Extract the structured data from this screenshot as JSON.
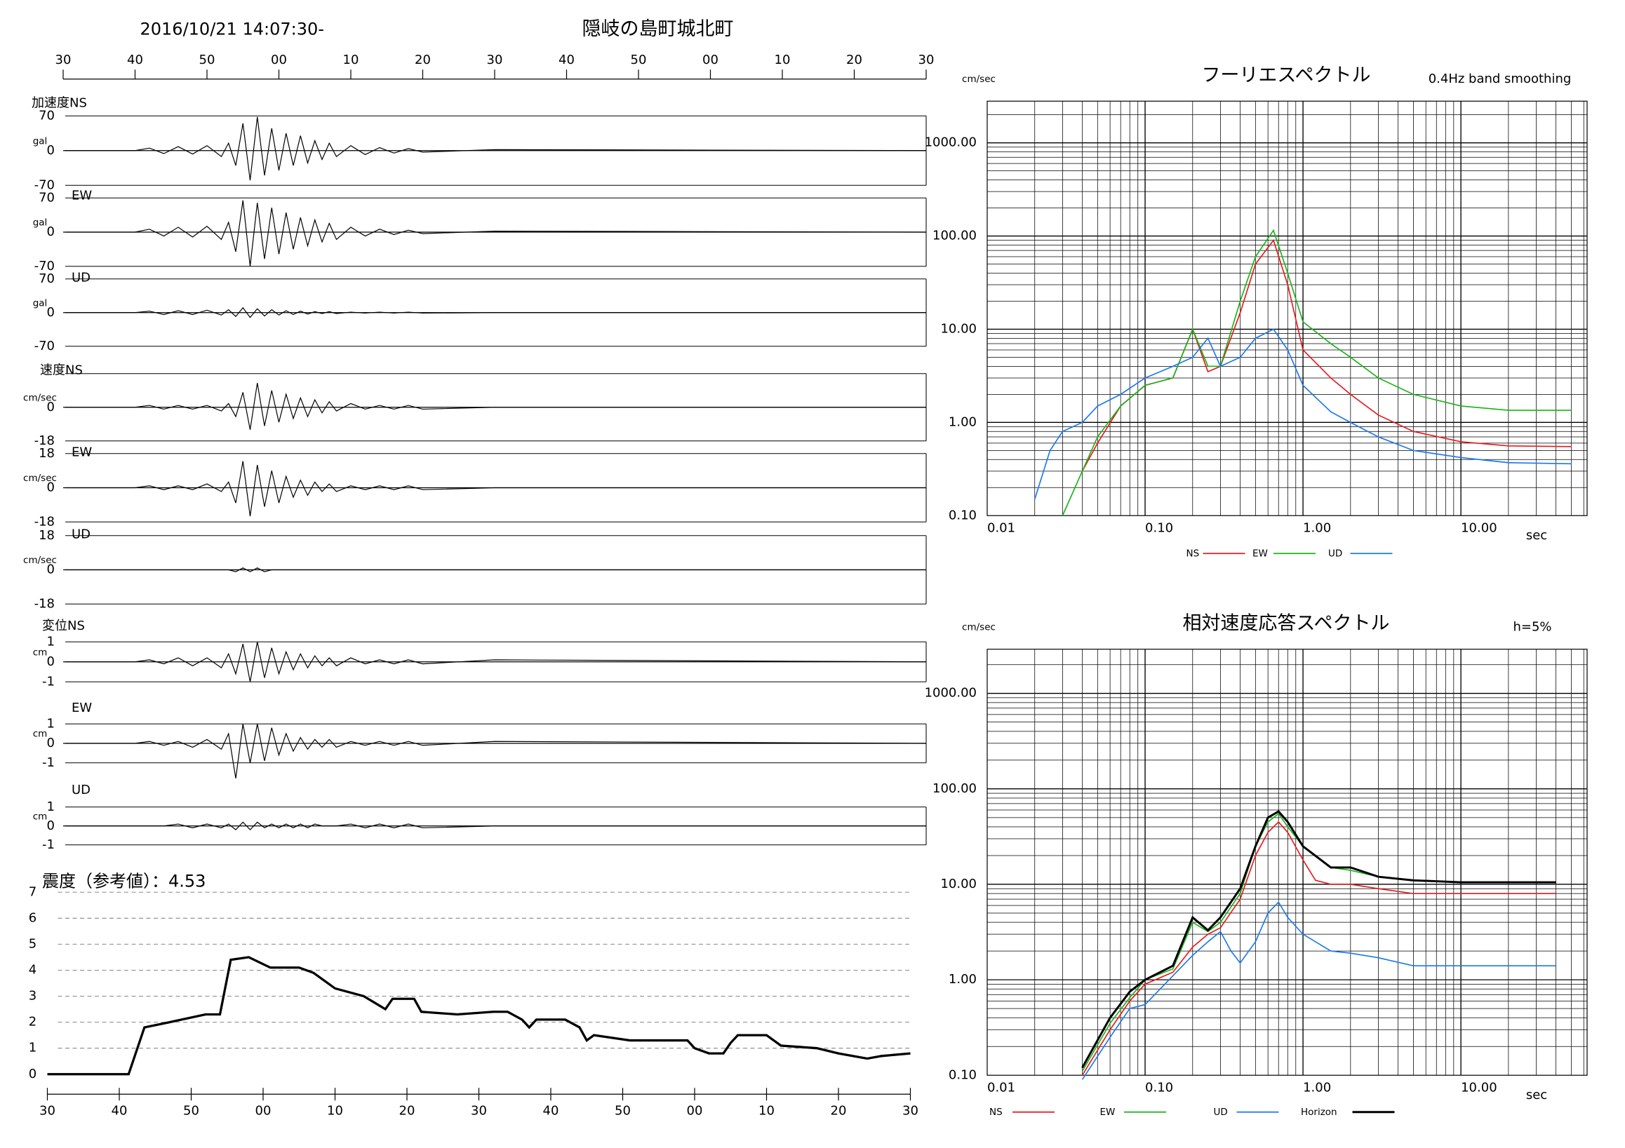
{
  "header": {
    "datetime": "2016/10/21 14:07:30-",
    "title": "隠岐の島町城北町"
  },
  "chart_data": [
    {
      "type": "waveform",
      "xlim": [
        0,
        120
      ],
      "xticks": [
        {
          "value": 0,
          "label": "30"
        },
        {
          "value": 10,
          "label": "40"
        },
        {
          "value": 20,
          "label": "50"
        },
        {
          "value": 30,
          "label": "00"
        },
        {
          "value": 40,
          "label": "10"
        },
        {
          "value": 50,
          "label": "20"
        },
        {
          "value": 60,
          "label": "30"
        },
        {
          "value": 70,
          "label": "40"
        },
        {
          "value": 80,
          "label": "50"
        },
        {
          "value": 90,
          "label": "00"
        },
        {
          "value": 100,
          "label": "10"
        },
        {
          "value": 110,
          "label": "20"
        },
        {
          "value": 120,
          "label": "30"
        }
      ],
      "x": [
        0,
        10,
        12,
        14,
        16,
        18,
        20,
        22,
        23,
        24,
        25,
        26,
        27,
        28,
        29,
        30,
        31,
        32,
        33,
        34,
        35,
        36,
        37,
        38,
        40,
        42,
        44,
        46,
        48,
        50,
        60,
        120
      ],
      "panels": [
        {
          "label": "加速度NS",
          "unit": "gal",
          "ylim": [
            -70,
            70
          ],
          "yticks": [
            -70,
            0,
            70
          ],
          "color": "#000000",
          "values": [
            0,
            0,
            5,
            -6,
            8,
            -7,
            10,
            -12,
            15,
            -30,
            55,
            -60,
            68,
            -50,
            45,
            -40,
            35,
            -30,
            30,
            -25,
            20,
            -18,
            15,
            -12,
            10,
            -8,
            6,
            -5,
            4,
            -3,
            2,
            0
          ]
        },
        {
          "label": "EW",
          "unit": "gal",
          "ylim": [
            -70,
            70
          ],
          "yticks": [
            -70,
            0,
            70
          ],
          "color": "#000000",
          "values": [
            0,
            0,
            6,
            -8,
            10,
            -10,
            12,
            -15,
            20,
            -40,
            65,
            -70,
            60,
            -55,
            50,
            -45,
            40,
            -35,
            30,
            -28,
            25,
            -20,
            18,
            -15,
            10,
            -8,
            6,
            -5,
            4,
            -3,
            2,
            0
          ]
        },
        {
          "label": "UD",
          "unit": "gal",
          "ylim": [
            -70,
            70
          ],
          "yticks": [
            -70,
            0,
            70
          ],
          "color": "#000000",
          "values": [
            0,
            0,
            3,
            -4,
            4,
            -4,
            5,
            -5,
            6,
            -8,
            10,
            -10,
            8,
            -7,
            6,
            -5,
            4,
            -4,
            3,
            -3,
            2,
            -2,
            2,
            -2,
            1,
            -1,
            1,
            -1,
            1,
            -1,
            0,
            0
          ]
        },
        {
          "label": "速度NS",
          "unit": "cm/sec",
          "ylim": [
            -18,
            18
          ],
          "yticks": [
            -18,
            0
          ],
          "color": "#000000",
          "values": [
            0,
            0,
            1,
            -1,
            1,
            -1,
            1,
            -2,
            2,
            -5,
            8,
            -12,
            13,
            -10,
            9,
            -8,
            7,
            -6,
            5,
            -5,
            4,
            -3,
            3,
            -2,
            2,
            -1,
            1,
            -1,
            1,
            -1,
            0,
            0
          ]
        },
        {
          "label": "EW",
          "unit": "cm/sec",
          "ylim": [
            -18,
            18
          ],
          "yticks": [
            -18,
            0,
            18
          ],
          "color": "#000000",
          "values": [
            0,
            0,
            1,
            -1,
            1,
            -1,
            2,
            -2,
            3,
            -8,
            14,
            -15,
            12,
            -10,
            9,
            -8,
            6,
            -5,
            4,
            -4,
            3,
            -2,
            2,
            -2,
            1,
            -1,
            1,
            -1,
            1,
            -1,
            0,
            0
          ]
        },
        {
          "label": "UD",
          "unit": "cm/sec",
          "ylim": [
            -18,
            18
          ],
          "yticks": [
            -18,
            0,
            18
          ],
          "color": "#000000",
          "values": [
            0,
            0,
            0,
            0,
            0,
            0,
            0,
            0,
            0,
            -1,
            1,
            -1,
            1,
            -1,
            0,
            0,
            0,
            0,
            0,
            0,
            0,
            0,
            0,
            0,
            0,
            0,
            0,
            0,
            0,
            0,
            0,
            0
          ]
        },
        {
          "label": "変位NS",
          "unit": "cm",
          "ylim": [
            -1,
            1
          ],
          "yticks": [
            -1,
            0,
            1
          ],
          "color": "#000000",
          "values": [
            0,
            0,
            0.1,
            -0.1,
            0.2,
            -0.2,
            0.2,
            -0.3,
            0.4,
            -0.6,
            0.9,
            -1,
            1,
            -0.8,
            0.7,
            -0.6,
            0.5,
            -0.4,
            0.4,
            -0.3,
            0.3,
            -0.2,
            0.2,
            -0.2,
            0.2,
            -0.1,
            0.1,
            -0.1,
            0.1,
            -0.1,
            0.1,
            0
          ]
        },
        {
          "label": "EW",
          "unit": "cm",
          "ylim": [
            -1,
            1
          ],
          "yticks": [
            -1,
            0,
            1
          ],
          "color": "#000000",
          "values": [
            0,
            0,
            0.1,
            -0.1,
            0.1,
            -0.2,
            0.2,
            -0.3,
            0.5,
            -1.8,
            1,
            -1,
            1,
            -0.9,
            0.8,
            -0.6,
            0.5,
            -0.4,
            0.3,
            -0.3,
            0.2,
            -0.2,
            0.2,
            -0.2,
            0.1,
            -0.1,
            0.1,
            -0.1,
            0.1,
            -0.1,
            0.1,
            0
          ]
        },
        {
          "label": "UD",
          "unit": "cm",
          "ylim": [
            -1,
            1
          ],
          "yticks": [
            -1,
            0,
            1
          ],
          "color": "#000000",
          "values": [
            0,
            0,
            0,
            0,
            0.1,
            -0.1,
            0.1,
            -0.1,
            0.1,
            -0.2,
            0.2,
            -0.2,
            0.2,
            -0.1,
            0.1,
            -0.1,
            0.1,
            -0.1,
            0.1,
            -0.1,
            0.1,
            0,
            0,
            0,
            0.1,
            -0.1,
            0.1,
            -0.1,
            0.1,
            -0.1,
            0,
            0
          ]
        }
      ]
    },
    {
      "type": "line",
      "title": "震度（参考値）：4.53",
      "color": "#000000",
      "grid": "dashed",
      "xlim": [
        0,
        120
      ],
      "xticks": [
        {
          "value": 0,
          "label": "30"
        },
        {
          "value": 10,
          "label": "40"
        },
        {
          "value": 20,
          "label": "50"
        },
        {
          "value": 30,
          "label": "00"
        },
        {
          "value": 40,
          "label": "10"
        },
        {
          "value": 50,
          "label": "20"
        },
        {
          "value": 60,
          "label": "30"
        },
        {
          "value": 70,
          "label": "40"
        },
        {
          "value": 80,
          "label": "50"
        },
        {
          "value": 90,
          "label": "00"
        },
        {
          "value": 100,
          "label": "10"
        },
        {
          "value": 110,
          "label": "20"
        },
        {
          "value": 120,
          "label": "30"
        }
      ],
      "ylim": [
        0,
        7
      ],
      "yticks": [
        0,
        1,
        2,
        3,
        4,
        5,
        6,
        7
      ],
      "x": [
        0,
        11.3,
        13.5,
        17,
        22,
        24,
        25.5,
        28,
        31,
        35,
        37,
        40,
        44,
        47,
        48,
        51,
        52,
        57,
        62,
        64,
        66,
        67,
        68,
        72,
        74,
        75,
        76,
        81,
        89,
        90,
        92,
        94,
        95,
        96,
        100,
        102,
        107,
        110,
        114,
        116,
        120
      ],
      "values": [
        0,
        0,
        1.8,
        2,
        2.3,
        2.3,
        4.4,
        4.5,
        4.1,
        4.1,
        3.9,
        3.3,
        3,
        2.5,
        2.9,
        2.9,
        2.4,
        2.3,
        2.4,
        2.4,
        2.1,
        1.8,
        2.1,
        2.1,
        1.8,
        1.3,
        1.5,
        1.3,
        1.3,
        1,
        0.8,
        0.8,
        1.2,
        1.5,
        1.5,
        1.1,
        1,
        0.8,
        0.6,
        0.7,
        0.8
      ]
    },
    {
      "type": "loglog",
      "title": "フーリエスペクトル",
      "subtitle": "0.4Hz band smoothing",
      "y_label": "cm/sec",
      "x_label": "sec",
      "log": true,
      "grid": true,
      "xlim": [
        0.01,
        63
      ],
      "ylim": [
        0.1,
        2800
      ],
      "xticks": [
        {
          "value": 0.01,
          "label": "0.01"
        },
        {
          "value": 0.1,
          "label": "0.10"
        },
        {
          "value": 1,
          "label": "1.00"
        },
        {
          "value": 10,
          "label": "10.00"
        }
      ],
      "yticks": [
        {
          "value": 0.1,
          "label": "0.10"
        },
        {
          "value": 1,
          "label": "1.00"
        },
        {
          "value": 10,
          "label": "10.00"
        },
        {
          "value": 100,
          "label": "100.00"
        },
        {
          "value": 1000,
          "label": "1000.00"
        }
      ],
      "series": [
        {
          "name": "NS",
          "color": "#e8181c",
          "x": [
            0.04,
            0.05,
            0.07,
            0.1,
            0.15,
            0.2,
            0.25,
            0.3,
            0.4,
            0.5,
            0.65,
            0.8,
            1,
            1.5,
            2,
            3,
            5,
            10,
            20,
            50
          ],
          "values": [
            0.3,
            0.6,
            1.5,
            2.5,
            3,
            10,
            3.5,
            4,
            15,
            50,
            90,
            30,
            6,
            3,
            2,
            1.2,
            0.8,
            0.62,
            0.56,
            0.55
          ]
        },
        {
          "name": "EW",
          "color": "#18b418",
          "x": [
            0.03,
            0.04,
            0.05,
            0.07,
            0.1,
            0.15,
            0.2,
            0.25,
            0.3,
            0.4,
            0.5,
            0.65,
            0.8,
            1,
            1.5,
            2,
            3,
            5,
            10,
            20,
            50
          ],
          "values": [
            0.1,
            0.3,
            0.7,
            1.5,
            2.5,
            3,
            10,
            4,
            4,
            20,
            60,
            115,
            40,
            12,
            7,
            5,
            3,
            2,
            1.5,
            1.35,
            1.35
          ]
        },
        {
          "name": "UD",
          "color": "#1a78f0",
          "x": [
            0.02,
            0.025,
            0.03,
            0.04,
            0.05,
            0.07,
            0.1,
            0.15,
            0.2,
            0.25,
            0.3,
            0.4,
            0.5,
            0.65,
            0.8,
            1,
            1.5,
            2,
            3,
            5,
            10,
            20,
            50
          ],
          "values": [
            0.15,
            0.5,
            0.8,
            1,
            1.5,
            2,
            3,
            4,
            5,
            8,
            4,
            5,
            8,
            10,
            6,
            2.5,
            1.3,
            1,
            0.7,
            0.5,
            0.42,
            0.37,
            0.36
          ]
        }
      ]
    },
    {
      "type": "loglog",
      "title": "相対速度応答スペクトル",
      "subtitle": "h=5%",
      "y_label": "cm/sec",
      "x_label": "sec",
      "log": true,
      "grid": true,
      "xlim": [
        0.01,
        63
      ],
      "ylim": [
        0.1,
        2900
      ],
      "xticks": [
        {
          "value": 0.01,
          "label": "0.01"
        },
        {
          "value": 0.1,
          "label": "0.10"
        },
        {
          "value": 1,
          "label": "1.00"
        },
        {
          "value": 10,
          "label": "10.00"
        }
      ],
      "yticks": [
        {
          "value": 0.1,
          "label": "0.10"
        },
        {
          "value": 1,
          "label": "1.00"
        },
        {
          "value": 10,
          "label": "10.00"
        },
        {
          "value": 100,
          "label": "100.00"
        },
        {
          "value": 1000,
          "label": "1000.00"
        }
      ],
      "series": [
        {
          "name": "NS",
          "color": "#e8181c",
          "x": [
            0.04,
            0.06,
            0.08,
            0.1,
            0.15,
            0.2,
            0.25,
            0.3,
            0.4,
            0.5,
            0.6,
            0.7,
            0.8,
            1,
            1.2,
            1.5,
            2,
            3,
            5,
            10,
            20,
            40
          ],
          "values": [
            0.1,
            0.3,
            0.6,
            0.9,
            1.2,
            2.2,
            3,
            3.5,
            7,
            20,
            35,
            45,
            35,
            18,
            11,
            10,
            10,
            9,
            8,
            8,
            8,
            8
          ]
        },
        {
          "name": "EW",
          "color": "#18b418",
          "x": [
            0.04,
            0.06,
            0.08,
            0.1,
            0.15,
            0.2,
            0.25,
            0.3,
            0.4,
            0.5,
            0.6,
            0.7,
            0.8,
            1,
            1.5,
            2,
            3,
            5,
            10,
            40
          ],
          "values": [
            0.11,
            0.35,
            0.65,
            1,
            1.3,
            4,
            3.2,
            4,
            8,
            25,
            45,
            55,
            40,
            25,
            15,
            14,
            12,
            11,
            10.5,
            10.5
          ]
        },
        {
          "name": "UD",
          "color": "#1a78f0",
          "x": [
            0.04,
            0.06,
            0.08,
            0.1,
            0.15,
            0.2,
            0.25,
            0.3,
            0.35,
            0.4,
            0.5,
            0.6,
            0.7,
            0.8,
            1,
            1.5,
            2,
            3,
            5,
            10,
            40
          ],
          "values": [
            0.09,
            0.25,
            0.5,
            0.55,
            1.1,
            1.8,
            2.5,
            3.2,
            2,
            1.5,
            2.5,
            5,
            6.5,
            4.5,
            3,
            2,
            1.9,
            1.7,
            1.4,
            1.4,
            1.4
          ]
        },
        {
          "name": "Horizon",
          "color": "#000000",
          "x": [
            0.04,
            0.06,
            0.08,
            0.1,
            0.15,
            0.2,
            0.25,
            0.3,
            0.4,
            0.5,
            0.6,
            0.7,
            0.8,
            1,
            1.5,
            2,
            3,
            5,
            10,
            40
          ],
          "values": [
            0.12,
            0.4,
            0.75,
            1,
            1.4,
            4.5,
            3.3,
            4.5,
            9,
            25,
            50,
            58,
            45,
            25,
            15,
            15,
            12,
            11,
            10.5,
            10.5
          ]
        }
      ]
    }
  ]
}
